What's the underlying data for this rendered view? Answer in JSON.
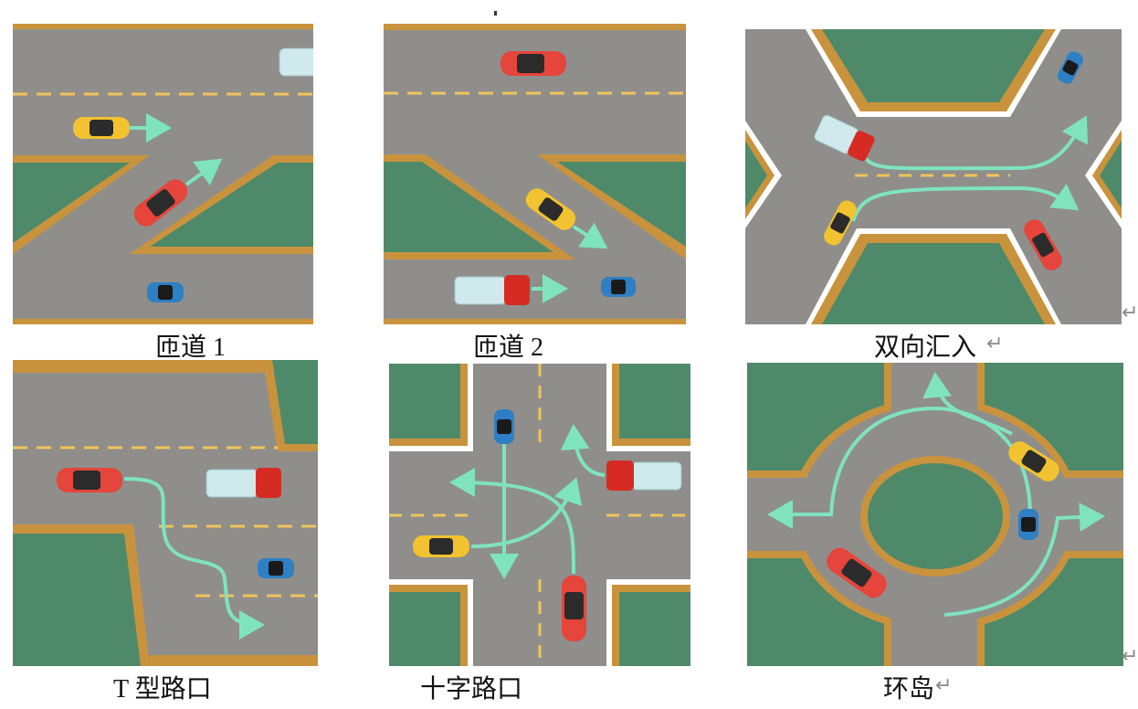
{
  "captions": {
    "ramp1": "匝道 1",
    "ramp2": "匝道 2",
    "merge": "双向汇入",
    "tjunction": "T 型路口",
    "crossroad": "十字路口",
    "roundabout": "环岛"
  },
  "marks": {
    "return": "↵"
  },
  "colors": {
    "road": "#8f8e8b",
    "grass": "#4e8a6a",
    "curb": "#c9933d",
    "lane_dash": "#f0c45a",
    "arrow": "#7fe3c0",
    "car_red": "#e5453b",
    "car_yellow": "#f2c230",
    "car_blue": "#2e7fc4",
    "truck_cab": "#d62b22",
    "truck_box": "#cfe9ec"
  }
}
